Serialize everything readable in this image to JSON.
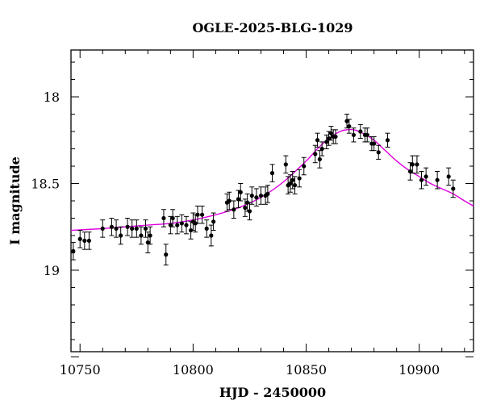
{
  "chart_data": {
    "type": "scatter",
    "title": "OGLE-2025-BLG-1029",
    "xlabel": "HJD - 2450000",
    "ylabel": "I magnitude",
    "xlim": [
      10746,
      10924
    ],
    "ylim": [
      19.47,
      17.73
    ],
    "y_inverted": true,
    "x_major_ticks": [
      10750,
      10800,
      10850,
      10900
    ],
    "y_major_ticks": [
      18,
      18.5,
      19
    ],
    "x_tick_labels": [
      "10750",
      "10800",
      "10850",
      "10900"
    ],
    "y_tick_labels": [
      "18",
      "18.5",
      "19"
    ],
    "grid": false,
    "legend": "none",
    "colors": {
      "points": "#000000",
      "model": "#e000e0"
    },
    "series": [
      {
        "kind": "points",
        "x": [
          10747,
          10750,
          10752,
          10754,
          10760,
          10764,
          10766,
          10768,
          10771,
          10773,
          10775,
          10777,
          10779,
          10780,
          10781,
          10787,
          10788,
          10790,
          10791,
          10793,
          10795,
          10797,
          10799,
          10800,
          10801,
          10802,
          10804,
          10806,
          10808,
          10809,
          10815,
          10816,
          10818,
          10820,
          10821,
          10823,
          10824,
          10825,
          10826,
          10828,
          10830,
          10832,
          10833,
          10835,
          10841,
          10842,
          10843,
          10844,
          10845,
          10847,
          10849,
          10854,
          10855,
          10856,
          10857,
          10859,
          10860,
          10861,
          10862,
          10863,
          10868,
          10869,
          10871,
          10874,
          10876,
          10877,
          10879,
          10880,
          10882,
          10886,
          10896,
          10897,
          10899,
          10901,
          10903,
          10908,
          10913,
          10915
        ],
        "y": [
          18.89,
          18.82,
          18.83,
          18.83,
          18.76,
          18.75,
          18.76,
          18.8,
          18.75,
          18.76,
          18.76,
          18.8,
          18.76,
          18.84,
          18.8,
          18.7,
          18.91,
          18.74,
          18.7,
          18.74,
          18.73,
          18.74,
          18.77,
          18.72,
          18.73,
          18.68,
          18.68,
          18.76,
          18.8,
          18.72,
          18.61,
          18.6,
          18.65,
          18.59,
          18.55,
          18.64,
          18.61,
          18.66,
          18.57,
          18.58,
          18.57,
          18.57,
          18.56,
          18.44,
          18.39,
          18.51,
          18.5,
          18.48,
          18.51,
          18.47,
          18.4,
          18.33,
          18.25,
          18.36,
          18.3,
          18.26,
          18.24,
          18.21,
          18.23,
          18.23,
          18.14,
          18.17,
          18.22,
          18.2,
          18.22,
          18.22,
          18.27,
          18.27,
          18.32,
          18.25,
          18.43,
          18.39,
          18.39,
          18.48,
          18.46,
          18.48,
          18.46,
          18.53
        ],
        "yerr": [
          0.05,
          0.05,
          0.05,
          0.05,
          0.05,
          0.05,
          0.05,
          0.05,
          0.05,
          0.05,
          0.05,
          0.05,
          0.05,
          0.06,
          0.05,
          0.05,
          0.06,
          0.05,
          0.05,
          0.05,
          0.05,
          0.05,
          0.05,
          0.05,
          0.05,
          0.05,
          0.05,
          0.05,
          0.06,
          0.05,
          0.05,
          0.05,
          0.05,
          0.05,
          0.05,
          0.05,
          0.05,
          0.05,
          0.05,
          0.05,
          0.05,
          0.05,
          0.05,
          0.05,
          0.05,
          0.05,
          0.05,
          0.05,
          0.05,
          0.05,
          0.05,
          0.05,
          0.04,
          0.05,
          0.04,
          0.04,
          0.04,
          0.04,
          0.04,
          0.04,
          0.04,
          0.04,
          0.04,
          0.04,
          0.04,
          0.04,
          0.04,
          0.04,
          0.04,
          0.04,
          0.05,
          0.05,
          0.05,
          0.05,
          0.05,
          0.05,
          0.05,
          0.05
        ]
      },
      {
        "kind": "model-curve",
        "x": [
          10746,
          10760,
          10770,
          10780,
          10790,
          10800,
          10810,
          10820,
          10830,
          10840,
          10850,
          10855,
          10860,
          10865,
          10868,
          10871,
          10875,
          10880,
          10885,
          10890,
          10895,
          10900,
          10905,
          10910,
          10915,
          10920,
          10924
        ],
        "y": [
          18.77,
          18.76,
          18.75,
          18.74,
          18.73,
          18.71,
          18.68,
          18.64,
          18.58,
          18.49,
          18.37,
          18.3,
          18.24,
          18.2,
          18.19,
          18.19,
          18.21,
          18.25,
          18.31,
          18.37,
          18.42,
          18.46,
          18.5,
          18.53,
          18.56,
          18.6,
          18.63
        ]
      }
    ]
  }
}
